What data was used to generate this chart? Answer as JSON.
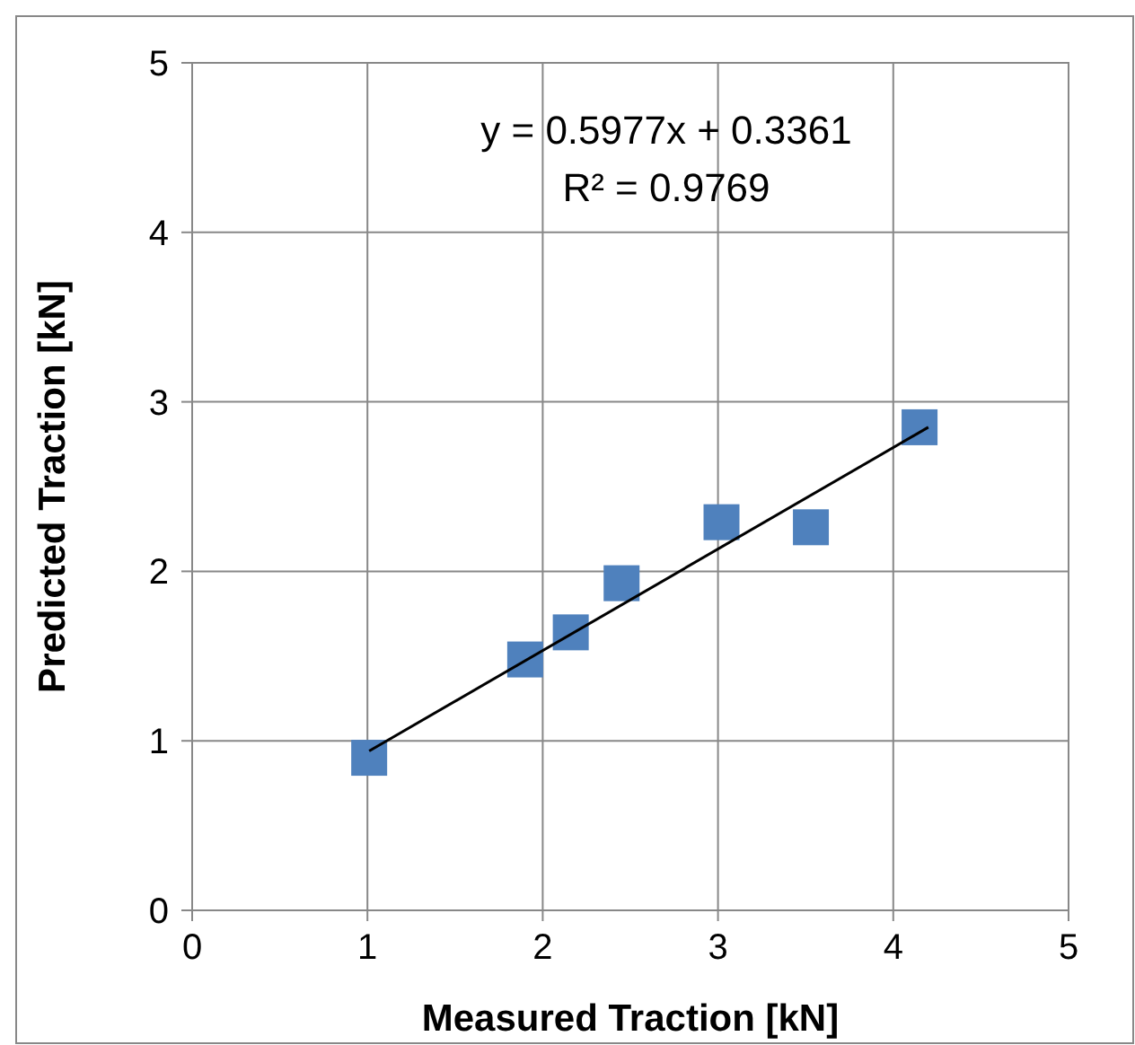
{
  "chart_data": {
    "type": "scatter",
    "xlabel": "Measured Traction [kN]",
    "ylabel": "Predicted Traction [kN]",
    "xlim": [
      0,
      5
    ],
    "ylim": [
      0,
      5
    ],
    "xticks": [
      0,
      1,
      2,
      3,
      4,
      5
    ],
    "yticks": [
      0,
      1,
      2,
      3,
      4,
      5
    ],
    "grid": true,
    "marker": "square",
    "annotations": [
      "y = 0.5977x + 0.3361",
      "R² = 0.9769"
    ],
    "series": [
      {
        "color": "#4f81bd",
        "x": [
          1.01,
          1.9,
          2.16,
          2.45,
          3.02,
          3.53,
          4.15
        ],
        "values": [
          0.9,
          1.48,
          1.64,
          1.93,
          2.29,
          2.26,
          2.85
        ]
      },
      {
        "type": "line",
        "color": "#000000",
        "x": [
          1.01,
          4.2
        ],
        "values": [
          0.94,
          2.85
        ],
        "marker": "none"
      }
    ]
  }
}
